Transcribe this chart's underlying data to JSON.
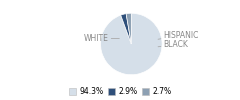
{
  "labels": [
    "WHITE",
    "HISPANIC",
    "BLACK"
  ],
  "values": [
    94.3,
    2.9,
    2.7
  ],
  "colors": [
    "#d5dfe9",
    "#2e4f7a",
    "#8da0b3"
  ],
  "legend_labels": [
    "94.3%",
    "2.9%",
    "2.7%"
  ],
  "startangle": 90,
  "background": "#ffffff",
  "label_color": "#888888",
  "line_color": "#aaaaaa",
  "font_size": 5.5
}
